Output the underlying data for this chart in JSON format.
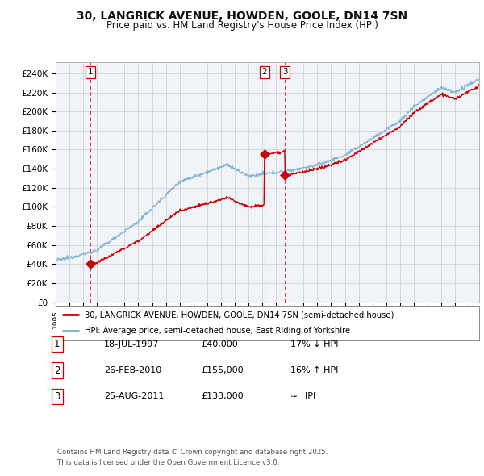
{
  "title_line1": "30, LANGRICK AVENUE, HOWDEN, GOOLE, DN14 7SN",
  "title_line2": "Price paid vs. HM Land Registry's House Price Index (HPI)",
  "xlim_start": 1995.25,
  "xlim_end": 2025.75,
  "ylim_min": 0,
  "ylim_max": 252000,
  "ytick_values": [
    0,
    20000,
    40000,
    60000,
    80000,
    100000,
    120000,
    140000,
    160000,
    180000,
    200000,
    220000,
    240000
  ],
  "ytick_labels": [
    "£0",
    "£20K",
    "£40K",
    "£60K",
    "£80K",
    "£100K",
    "£120K",
    "£140K",
    "£160K",
    "£180K",
    "£200K",
    "£220K",
    "£240K"
  ],
  "sale_color": "#cc0000",
  "hpi_color": "#7ab0d4",
  "chart_bg": "#f0f4f8",
  "sale_label": "30, LANGRICK AVENUE, HOWDEN, GOOLE, DN14 7SN (semi-detached house)",
  "hpi_label": "HPI: Average price, semi-detached house, East Riding of Yorkshire",
  "transactions": [
    {
      "num": 1,
      "date_year": 1997.54,
      "price": 40000,
      "label": "18-JUL-1997",
      "price_label": "£40,000",
      "rel": "17% ↓ HPI"
    },
    {
      "num": 2,
      "date_year": 2010.15,
      "price": 155000,
      "label": "26-FEB-2010",
      "price_label": "£155,000",
      "rel": "16% ↑ HPI"
    },
    {
      "num": 3,
      "date_year": 2011.65,
      "price": 133000,
      "label": "25-AUG-2011",
      "price_label": "£133,000",
      "rel": "≈ HPI"
    }
  ],
  "footer_line1": "Contains HM Land Registry data © Crown copyright and database right 2025.",
  "footer_line2": "This data is licensed under the Open Government Licence v3.0.",
  "background_color": "#ffffff",
  "grid_color": "#cccccc"
}
